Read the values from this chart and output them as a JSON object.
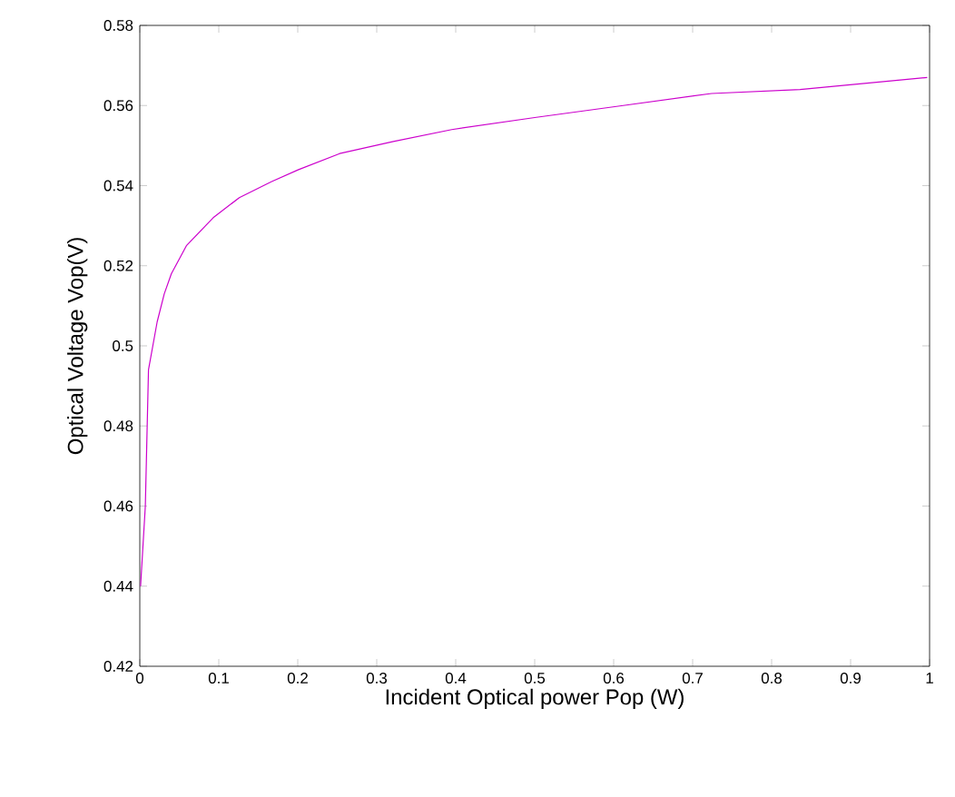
{
  "chart_data": {
    "type": "line",
    "xlabel": "Incident Optical power Pop (W)",
    "ylabel": "Optical Voltage Vop(V)",
    "x": [
      0.001,
      0.007,
      0.011,
      0.022,
      0.031,
      0.04,
      0.059,
      0.093,
      0.126,
      0.167,
      0.201,
      0.253,
      0.321,
      0.395,
      0.5,
      0.612,
      0.724,
      0.836,
      0.997
    ],
    "series": [
      {
        "color": "#cc00cc",
        "values": [
          0.44,
          0.46,
          0.494,
          0.506,
          0.513,
          0.518,
          0.525,
          0.532,
          0.537,
          0.541,
          0.544,
          0.548,
          0.551,
          0.554,
          0.557,
          0.56,
          0.563,
          0.564,
          0.567
        ]
      }
    ],
    "xlim": [
      0,
      1
    ],
    "ylim": [
      0.42,
      0.58
    ],
    "xticks": [
      0,
      0.1,
      0.2,
      0.3,
      0.4,
      0.5,
      0.6,
      0.7,
      0.8,
      0.9,
      1
    ],
    "yticks": [
      0.42,
      0.44,
      0.46,
      0.48,
      0.5,
      0.52,
      0.54,
      0.56,
      0.58
    ],
    "marker": "none",
    "line_style": "solid"
  }
}
